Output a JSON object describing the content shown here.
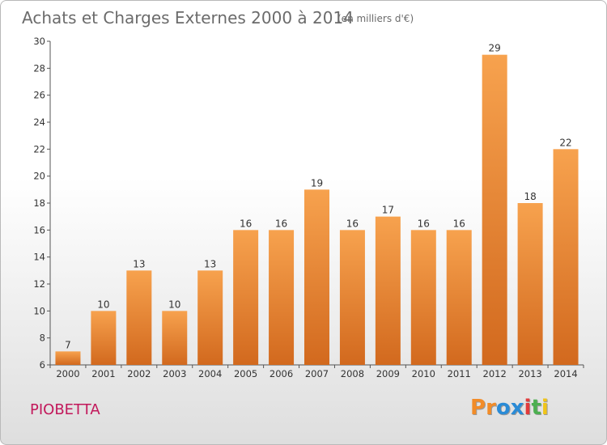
{
  "chart_data": {
    "type": "bar",
    "title": "Achats et Charges Externes 2000 à 2014",
    "subtitle": "(en milliers d'€)",
    "categories": [
      "2000",
      "2001",
      "2002",
      "2003",
      "2004",
      "2005",
      "2006",
      "2007",
      "2008",
      "2009",
      "2010",
      "2011",
      "2012",
      "2013",
      "2014"
    ],
    "values": [
      7,
      10,
      13,
      10,
      13,
      16,
      16,
      19,
      16,
      17,
      16,
      16,
      29,
      18,
      22
    ],
    "ylim": [
      6,
      30
    ],
    "yticks": [
      6,
      8,
      10,
      12,
      14,
      16,
      18,
      20,
      22,
      24,
      26,
      28,
      30
    ],
    "grid": false,
    "bar_color_top": "#f7a24e",
    "bar_color_bottom": "#d2691e"
  },
  "footer": {
    "place": "PIOBETTA",
    "logo": {
      "letters": [
        "P",
        "r",
        "o",
        "x",
        "i",
        "t",
        "i"
      ],
      "colors": [
        "#f28c28",
        "#f28c28",
        "#2a8bd6",
        "#2a8bd6",
        "#e23b3b",
        "#4caf50",
        "#f0c419"
      ]
    }
  }
}
